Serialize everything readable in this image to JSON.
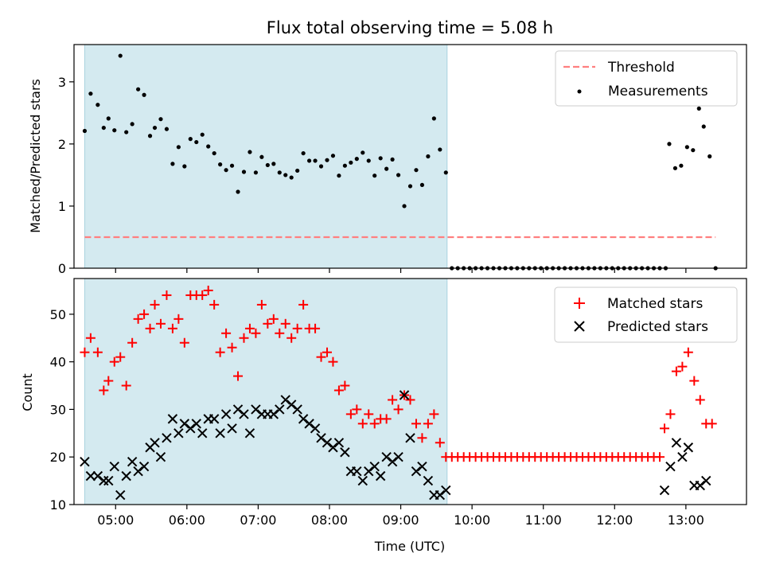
{
  "chart_data": {
    "type": "scatter",
    "title": "Flux total observing time = 5.08 h",
    "xlabel": "Time (UTC)",
    "x_ticks": [
      "05:00",
      "06:00",
      "07:00",
      "08:00",
      "09:00",
      "10:00",
      "11:00",
      "12:00",
      "13:00"
    ],
    "xlim": [
      "04:25",
      "13:51"
    ],
    "observing_window": [
      "04:34",
      "09:39"
    ],
    "colors": {
      "window": "#d4eaf0",
      "threshold": "#ff7f7f",
      "measurements": "#000000",
      "matched": "#ff0000",
      "predicted": "#000000"
    },
    "top": {
      "ylabel": "Matched/Predicted stars",
      "ylim": [
        0,
        3.6
      ],
      "y_ticks": [
        0,
        1,
        2,
        3
      ],
      "threshold": 0.5,
      "legend": [
        "Threshold",
        "Measurements"
      ],
      "legend_position": "upper right",
      "measurements": [
        [
          "04:34",
          2.21
        ],
        [
          "04:39",
          2.81
        ],
        [
          "04:45",
          2.63
        ],
        [
          "04:50",
          2.26
        ],
        [
          "04:54",
          2.41
        ],
        [
          "04:59",
          2.22
        ],
        [
          "05:04",
          3.42
        ],
        [
          "05:09",
          2.19
        ],
        [
          "05:14",
          2.32
        ],
        [
          "05:19",
          2.88
        ],
        [
          "05:24",
          2.79
        ],
        [
          "05:29",
          2.13
        ],
        [
          "05:33",
          2.26
        ],
        [
          "05:38",
          2.4
        ],
        [
          "05:43",
          2.24
        ],
        [
          "05:48",
          1.68
        ],
        [
          "05:53",
          1.95
        ],
        [
          "05:58",
          1.64
        ],
        [
          "06:03",
          2.08
        ],
        [
          "06:08",
          2.03
        ],
        [
          "06:13",
          2.15
        ],
        [
          "06:18",
          1.96
        ],
        [
          "06:23",
          1.85
        ],
        [
          "06:28",
          1.67
        ],
        [
          "06:33",
          1.58
        ],
        [
          "06:38",
          1.65
        ],
        [
          "06:43",
          1.23
        ],
        [
          "06:48",
          1.55
        ],
        [
          "06:53",
          1.87
        ],
        [
          "06:58",
          1.54
        ],
        [
          "07:03",
          1.79
        ],
        [
          "07:08",
          1.66
        ],
        [
          "07:13",
          1.68
        ],
        [
          "07:18",
          1.54
        ],
        [
          "07:23",
          1.5
        ],
        [
          "07:28",
          1.46
        ],
        [
          "07:33",
          1.57
        ],
        [
          "07:38",
          1.85
        ],
        [
          "07:43",
          1.73
        ],
        [
          "07:48",
          1.73
        ],
        [
          "07:53",
          1.64
        ],
        [
          "07:58",
          1.74
        ],
        [
          "08:03",
          1.81
        ],
        [
          "08:08",
          1.49
        ],
        [
          "08:13",
          1.65
        ],
        [
          "08:18",
          1.7
        ],
        [
          "08:23",
          1.76
        ],
        [
          "08:28",
          1.86
        ],
        [
          "08:33",
          1.73
        ],
        [
          "08:38",
          1.49
        ],
        [
          "08:43",
          1.77
        ],
        [
          "08:48",
          1.6
        ],
        [
          "08:53",
          1.75
        ],
        [
          "08:58",
          1.5
        ],
        [
          "09:03",
          1.0
        ],
        [
          "09:08",
          1.32
        ],
        [
          "09:13",
          1.58
        ],
        [
          "09:18",
          1.34
        ],
        [
          "09:23",
          1.8
        ],
        [
          "09:28",
          2.41
        ],
        [
          "09:33",
          1.91
        ],
        [
          "09:38",
          1.54
        ],
        [
          "09:43",
          0
        ],
        [
          "09:48",
          0
        ],
        [
          "09:53",
          0
        ],
        [
          "09:58",
          0
        ],
        [
          "10:03",
          0
        ],
        [
          "10:08",
          0
        ],
        [
          "10:13",
          0
        ],
        [
          "10:18",
          0
        ],
        [
          "10:23",
          0
        ],
        [
          "10:28",
          0
        ],
        [
          "10:33",
          0
        ],
        [
          "10:38",
          0
        ],
        [
          "10:43",
          0
        ],
        [
          "10:48",
          0
        ],
        [
          "10:53",
          0
        ],
        [
          "10:58",
          0
        ],
        [
          "11:03",
          0
        ],
        [
          "11:08",
          0
        ],
        [
          "11:13",
          0
        ],
        [
          "11:18",
          0
        ],
        [
          "11:23",
          0
        ],
        [
          "11:28",
          0
        ],
        [
          "11:33",
          0
        ],
        [
          "11:38",
          0
        ],
        [
          "11:43",
          0
        ],
        [
          "11:48",
          0
        ],
        [
          "11:53",
          0
        ],
        [
          "11:58",
          0
        ],
        [
          "12:03",
          0
        ],
        [
          "12:08",
          0
        ],
        [
          "12:13",
          0
        ],
        [
          "12:18",
          0
        ],
        [
          "12:23",
          0
        ],
        [
          "12:28",
          0
        ],
        [
          "12:33",
          0
        ],
        [
          "12:38",
          0
        ],
        [
          "12:43",
          0
        ],
        [
          "12:46",
          2.0
        ],
        [
          "12:51",
          1.61
        ],
        [
          "12:56",
          1.65
        ],
        [
          "13:01",
          1.95
        ],
        [
          "13:06",
          1.9
        ],
        [
          "13:11",
          2.57
        ],
        [
          "13:15",
          2.28
        ],
        [
          "13:20",
          1.8
        ],
        [
          "13:25",
          0
        ]
      ]
    },
    "bottom": {
      "ylabel": "Count",
      "ylim": [
        10,
        57.5
      ],
      "y_ticks": [
        10,
        20,
        30,
        40,
        50
      ],
      "legend": [
        "Matched stars",
        "Predicted stars"
      ],
      "legend_position": "upper right",
      "matched": [
        [
          "04:34",
          42
        ],
        [
          "04:39",
          45
        ],
        [
          "04:45",
          42
        ],
        [
          "04:50",
          34
        ],
        [
          "04:54",
          36
        ],
        [
          "04:59",
          40
        ],
        [
          "05:04",
          41
        ],
        [
          "05:09",
          35
        ],
        [
          "05:14",
          44
        ],
        [
          "05:19",
          49
        ],
        [
          "05:24",
          50
        ],
        [
          "05:29",
          47
        ],
        [
          "05:33",
          52
        ],
        [
          "05:38",
          48
        ],
        [
          "05:43",
          54
        ],
        [
          "05:48",
          47
        ],
        [
          "05:53",
          49
        ],
        [
          "05:58",
          44
        ],
        [
          "06:03",
          54
        ],
        [
          "06:08",
          54
        ],
        [
          "06:13",
          54
        ],
        [
          "06:18",
          55
        ],
        [
          "06:23",
          52
        ],
        [
          "06:28",
          42
        ],
        [
          "06:33",
          46
        ],
        [
          "06:38",
          43
        ],
        [
          "06:43",
          37
        ],
        [
          "06:48",
          45
        ],
        [
          "06:53",
          47
        ],
        [
          "06:58",
          46
        ],
        [
          "07:03",
          52
        ],
        [
          "07:08",
          48
        ],
        [
          "07:13",
          49
        ],
        [
          "07:18",
          46
        ],
        [
          "07:23",
          48
        ],
        [
          "07:28",
          45
        ],
        [
          "07:33",
          47
        ],
        [
          "07:38",
          52
        ],
        [
          "07:43",
          47
        ],
        [
          "07:48",
          47
        ],
        [
          "07:53",
          41
        ],
        [
          "07:58",
          42
        ],
        [
          "08:03",
          40
        ],
        [
          "08:08",
          34
        ],
        [
          "08:13",
          35
        ],
        [
          "08:18",
          29
        ],
        [
          "08:23",
          30
        ],
        [
          "08:28",
          27
        ],
        [
          "08:33",
          29
        ],
        [
          "08:38",
          27
        ],
        [
          "08:43",
          28
        ],
        [
          "08:48",
          28
        ],
        [
          "08:53",
          32
        ],
        [
          "08:58",
          30
        ],
        [
          "09:03",
          33
        ],
        [
          "09:08",
          32
        ],
        [
          "09:13",
          27
        ],
        [
          "09:18",
          24
        ],
        [
          "09:23",
          27
        ],
        [
          "09:28",
          29
        ],
        [
          "09:33",
          23
        ],
        [
          "09:38",
          20
        ],
        [
          "09:43",
          20
        ],
        [
          "09:48",
          20
        ],
        [
          "09:53",
          20
        ],
        [
          "09:58",
          20
        ],
        [
          "10:03",
          20
        ],
        [
          "10:08",
          20
        ],
        [
          "10:13",
          20
        ],
        [
          "10:18",
          20
        ],
        [
          "10:23",
          20
        ],
        [
          "10:28",
          20
        ],
        [
          "10:33",
          20
        ],
        [
          "10:38",
          20
        ],
        [
          "10:43",
          20
        ],
        [
          "10:48",
          20
        ],
        [
          "10:53",
          20
        ],
        [
          "10:58",
          20
        ],
        [
          "11:03",
          20
        ],
        [
          "11:08",
          20
        ],
        [
          "11:13",
          20
        ],
        [
          "11:18",
          20
        ],
        [
          "11:23",
          20
        ],
        [
          "11:28",
          20
        ],
        [
          "11:33",
          20
        ],
        [
          "11:38",
          20
        ],
        [
          "11:43",
          20
        ],
        [
          "11:48",
          20
        ],
        [
          "11:53",
          20
        ],
        [
          "11:58",
          20
        ],
        [
          "12:03",
          20
        ],
        [
          "12:08",
          20
        ],
        [
          "12:13",
          20
        ],
        [
          "12:18",
          20
        ],
        [
          "12:23",
          20
        ],
        [
          "12:28",
          20
        ],
        [
          "12:33",
          20
        ],
        [
          "12:38",
          20
        ],
        [
          "12:42",
          26
        ],
        [
          "12:47",
          29
        ],
        [
          "12:52",
          38
        ],
        [
          "12:57",
          39
        ],
        [
          "13:02",
          42
        ],
        [
          "13:07",
          36
        ],
        [
          "13:12",
          32
        ],
        [
          "13:17",
          27
        ],
        [
          "13:22",
          27
        ]
      ],
      "predicted": [
        [
          "04:34",
          19
        ],
        [
          "04:39",
          16
        ],
        [
          "04:45",
          16
        ],
        [
          "04:50",
          15
        ],
        [
          "04:54",
          15
        ],
        [
          "04:59",
          18
        ],
        [
          "05:04",
          12
        ],
        [
          "05:09",
          16
        ],
        [
          "05:14",
          19
        ],
        [
          "05:19",
          17
        ],
        [
          "05:24",
          18
        ],
        [
          "05:29",
          22
        ],
        [
          "05:33",
          23
        ],
        [
          "05:38",
          20
        ],
        [
          "05:43",
          24
        ],
        [
          "05:48",
          28
        ],
        [
          "05:53",
          25
        ],
        [
          "05:58",
          27
        ],
        [
          "06:03",
          26
        ],
        [
          "06:08",
          27
        ],
        [
          "06:13",
          25
        ],
        [
          "06:18",
          28
        ],
        [
          "06:23",
          28
        ],
        [
          "06:28",
          25
        ],
        [
          "06:33",
          29
        ],
        [
          "06:38",
          26
        ],
        [
          "06:43",
          30
        ],
        [
          "06:48",
          29
        ],
        [
          "06:53",
          25
        ],
        [
          "06:58",
          30
        ],
        [
          "07:03",
          29
        ],
        [
          "07:08",
          29
        ],
        [
          "07:13",
          29
        ],
        [
          "07:18",
          30
        ],
        [
          "07:23",
          32
        ],
        [
          "07:28",
          31
        ],
        [
          "07:33",
          30
        ],
        [
          "07:38",
          28
        ],
        [
          "07:43",
          27
        ],
        [
          "07:48",
          26
        ],
        [
          "07:53",
          24
        ],
        [
          "07:58",
          23
        ],
        [
          "08:03",
          22
        ],
        [
          "08:08",
          23
        ],
        [
          "08:13",
          21
        ],
        [
          "08:18",
          17
        ],
        [
          "08:23",
          17
        ],
        [
          "08:28",
          15
        ],
        [
          "08:33",
          17
        ],
        [
          "08:38",
          18
        ],
        [
          "08:43",
          16
        ],
        [
          "08:48",
          20
        ],
        [
          "08:53",
          19
        ],
        [
          "08:58",
          20
        ],
        [
          "09:03",
          33
        ],
        [
          "09:08",
          24
        ],
        [
          "09:13",
          17
        ],
        [
          "09:18",
          18
        ],
        [
          "09:23",
          15
        ],
        [
          "09:28",
          12
        ],
        [
          "09:33",
          12
        ],
        [
          "09:38",
          13
        ],
        [
          "12:42",
          13
        ],
        [
          "12:47",
          18
        ],
        [
          "12:52",
          23
        ],
        [
          "12:57",
          20
        ],
        [
          "13:02",
          22
        ],
        [
          "13:07",
          14
        ],
        [
          "13:12",
          14
        ],
        [
          "13:17",
          15
        ]
      ]
    }
  }
}
